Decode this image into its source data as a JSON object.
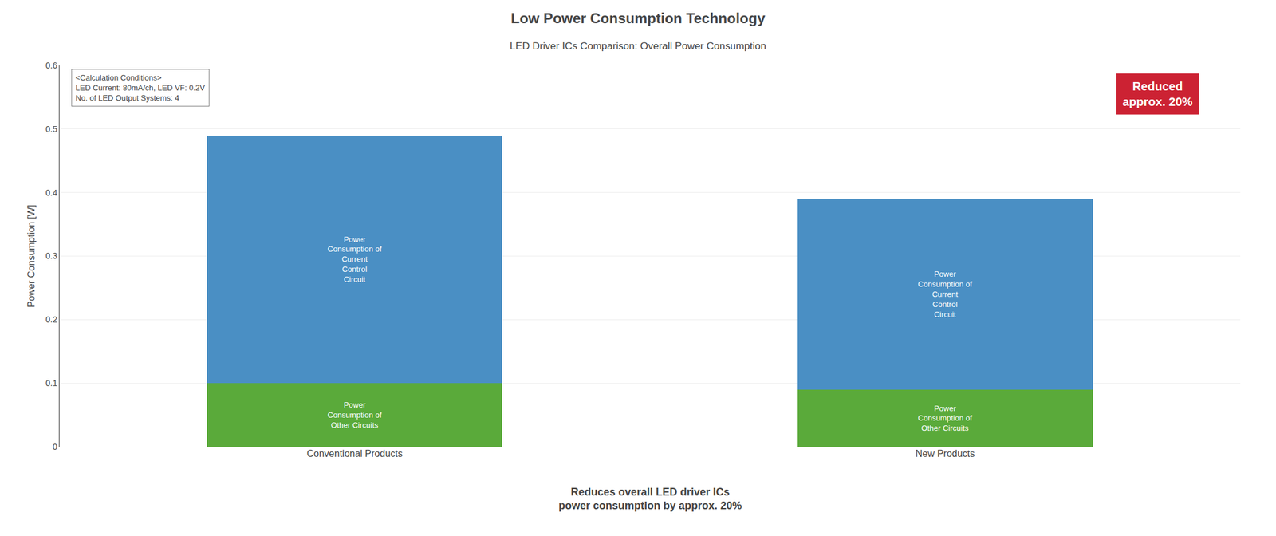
{
  "chart_data": {
    "type": "bar",
    "stacked": true,
    "title": "Low Power Consumption Technology",
    "subtitle": "LED Driver ICs Comparison: Overall Power Consumption",
    "categories": [
      "Conventional Products",
      "New Products"
    ],
    "series": [
      {
        "name": "Power Consumption of Other Circuits",
        "color": "#5aaa3a",
        "values": [
          0.1,
          0.09
        ]
      },
      {
        "name": "Power Consumption of Current Control Circuit",
        "color": "#4a8fc4",
        "values": [
          0.39,
          0.3
        ]
      }
    ],
    "ylabel": "Power Consumption [W]",
    "ylim": [
      0,
      0.6
    ],
    "yticks": [
      0,
      0.1,
      0.2,
      0.3,
      0.4,
      0.5,
      0.6
    ],
    "grid": true,
    "annotations": [
      "<Calculation Conditions>\nLED Current: 80mA/ch, LED VF: 0.2V\nNo. of LED Output Systems: 4",
      "Reduced\napprox. 20%",
      "Reduces overall LED driver ICs\npower consumption by approx. 20%"
    ]
  }
}
